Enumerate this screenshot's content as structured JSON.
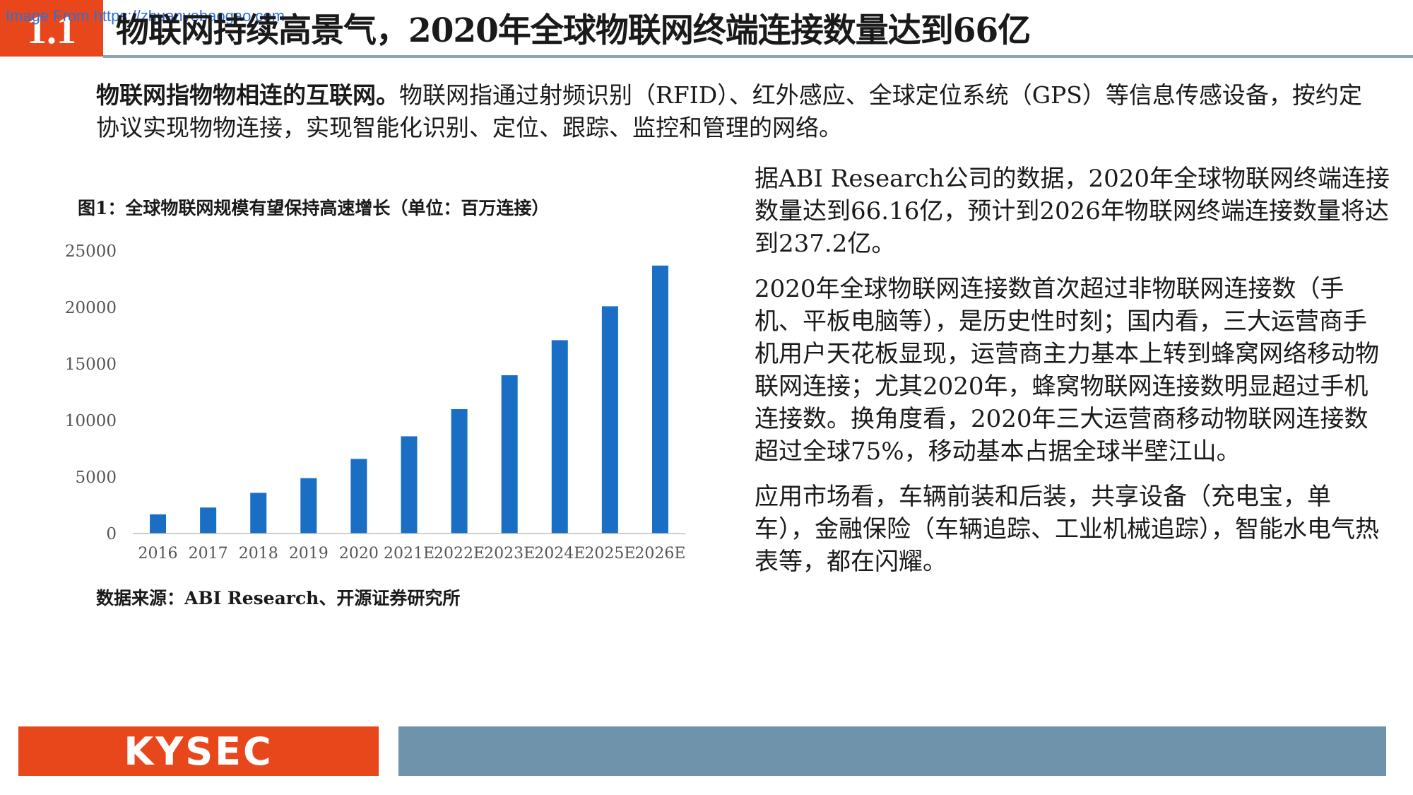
{
  "header": {
    "section_number": "1.1",
    "watermark": "Image From https://zhuanyebaogao.com",
    "title": "物联网持续高景气，2020年全球物联网终端连接数量达到66亿"
  },
  "intro": {
    "lead": "物联网指物物相连的互联网。",
    "body": "物联网指通过射频识别（RFID）、红外感应、全球定位系统（GPS）等信息传感设备，按约定协议实现物物连接，实现智能化识别、定位、跟踪、监控和管理的网络。"
  },
  "figure": {
    "caption": "图1：全球物联网规模有望保持高速增长（单位：百万连接）",
    "source": "数据来源：ABI Research、开源证券研究所"
  },
  "chart_data": {
    "type": "bar",
    "categories": [
      "2016",
      "2017",
      "2018",
      "2019",
      "2020",
      "2021E",
      "2022E",
      "2023E",
      "2024E",
      "2025E",
      "2026E"
    ],
    "values": [
      1700,
      2300,
      3600,
      4900,
      6600,
      8600,
      11000,
      14000,
      17100,
      20100,
      23700
    ],
    "yticks": [
      "0",
      "5000",
      "10000",
      "15000",
      "20000",
      "25000"
    ],
    "ylim": [
      0,
      25000
    ],
    "bar_color": "#1a6fc4",
    "grid": false
  },
  "right_text": {
    "p1": "据ABI Research公司的数据，2020年全球物联网终端连接数量达到66.16亿，预计到2026年物联网终端连接数量将达到237.2亿。",
    "p2": "2020年全球物联网连接数首次超过非物联网连接数（手机、平板电脑等），是历史性时刻；国内看，三大运营商手机用户天花板显现，运营商主力基本上转到蜂窝网络移动物联网连接；尤其2020年，蜂窝物联网连接数明显超过手机连接数。换角度看，2020年三大运营商移动物联网连接数超过全球75%，移动基本占据全球半壁江山。",
    "p3": "应用市场看，车辆前装和后装，共享设备（充电宝，单车），金融保险（车辆追踪、工业机械追踪），智能水电气热表等，都在闪耀。"
  },
  "footer": {
    "logo": "KYSEC"
  },
  "colors": {
    "accent": "#e8471c",
    "footer_bar": "#6e93aa",
    "rule": "#8aa4b8"
  }
}
